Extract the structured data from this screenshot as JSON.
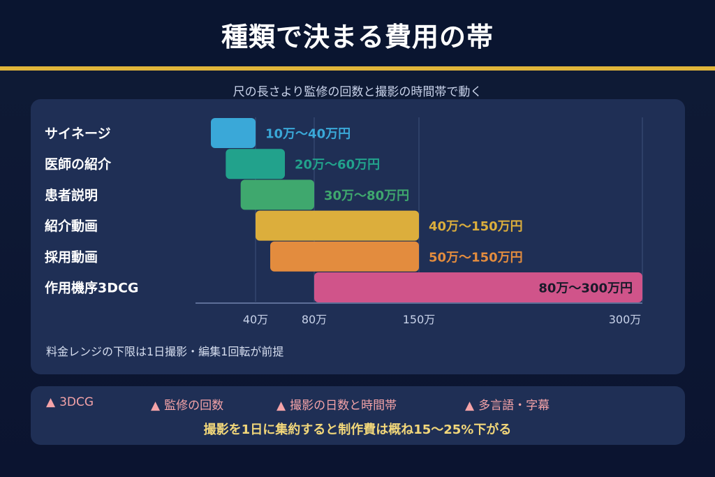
{
  "title": "種類で決まる費用の帯",
  "subtitle": "尺の長さより監修の回数と撮影の時間帯で動く",
  "note": "料金レンジの下限は1日撮影・編集1回転が前提",
  "footer": {
    "items": [
      {
        "icon": "triangle-icon",
        "label": "3DCG"
      },
      {
        "icon": "triangle-icon",
        "label": "監修の回数"
      },
      {
        "icon": "triangle-icon",
        "label": "撮影の日数と時間帯"
      },
      {
        "icon": "triangle-icon",
        "label": "多言語・字幕"
      }
    ],
    "summary": "撮影を1日に集約すると制作費は概ね15〜25%下がる"
  },
  "chart_data": {
    "type": "bar",
    "orientation": "horizontal-range",
    "title": "",
    "xlabel": "",
    "ylabel": "",
    "xlim": [
      10,
      300
    ],
    "grid": true,
    "ticks": [
      {
        "value": 40,
        "label": "40万"
      },
      {
        "value": 80,
        "label": "80万"
      },
      {
        "value": 150,
        "label": "150万"
      },
      {
        "value": 300,
        "label": "300万"
      }
    ],
    "series": [
      {
        "category": "サイネージ",
        "min": 10,
        "max": 40,
        "label": "10万〜40万円",
        "color": "#3aa8d8",
        "label_inside": false
      },
      {
        "category": "医師の紹介",
        "min": 20,
        "max": 60,
        "label": "20万〜60万円",
        "color": "#22a28c",
        "label_inside": false
      },
      {
        "category": "患者説明",
        "min": 30,
        "max": 80,
        "label": "30万〜80万円",
        "color": "#3fa86e",
        "label_inside": false
      },
      {
        "category": "紹介動画",
        "min": 40,
        "max": 150,
        "label": "40万〜150万円",
        "color": "#dcae3c",
        "label_inside": false
      },
      {
        "category": "採用動画",
        "min": 50,
        "max": 150,
        "label": "50万〜150万円",
        "color": "#e38c3e",
        "label_inside": false
      },
      {
        "category": "作用機序3DCG",
        "min": 80,
        "max": 300,
        "label": "80万〜300万円",
        "color": "#d0548a",
        "label_inside": true
      }
    ]
  }
}
